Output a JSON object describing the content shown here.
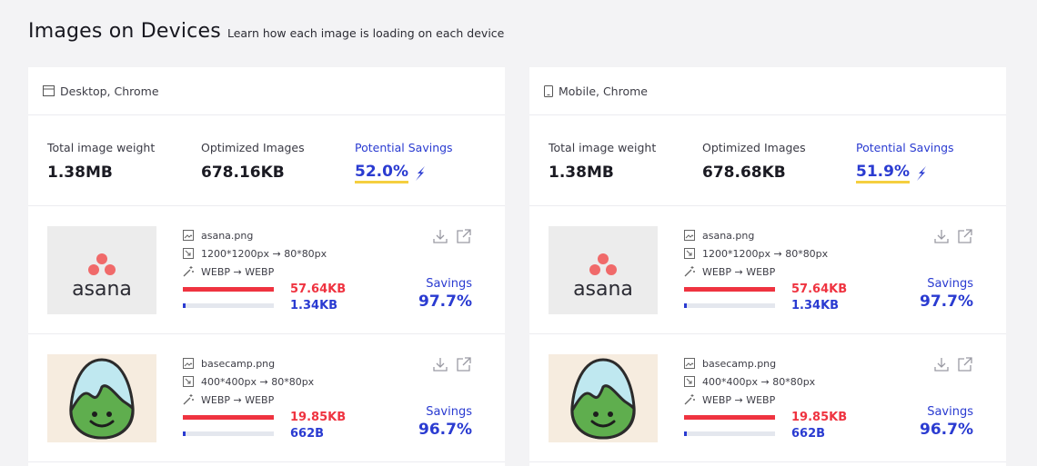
{
  "header": {
    "title": "Images on Devices",
    "subtitle": "Learn how each image is loading on each device"
  },
  "panels": [
    {
      "device": "Desktop, Chrome",
      "stats": {
        "total_label": "Total image weight",
        "total_value": "1.38MB",
        "optimized_label": "Optimized Images",
        "optimized_value": "678.16KB",
        "savings_label": "Potential Savings",
        "savings_value": "52.0%"
      },
      "items": [
        {
          "filename": "asana.png",
          "dimensions": "1200*1200px → 80*80px",
          "format": "WEBP → WEBP",
          "original_size": "57.64KB",
          "optimized_size": "1.34KB",
          "optimized_fraction": 0.023,
          "savings_label": "Savings",
          "savings_value": "97.7%",
          "logo_text": "asana"
        },
        {
          "filename": "basecamp.png",
          "dimensions": "400*400px → 80*80px",
          "format": "WEBP → WEBP",
          "original_size": "19.85KB",
          "optimized_size": "662B",
          "optimized_fraction": 0.033,
          "savings_label": "Savings",
          "savings_value": "96.7%"
        }
      ]
    },
    {
      "device": "Mobile, Chrome",
      "stats": {
        "total_label": "Total image weight",
        "total_value": "1.38MB",
        "optimized_label": "Optimized Images",
        "optimized_value": "678.68KB",
        "savings_label": "Potential Savings",
        "savings_value": "51.9%"
      },
      "items": [
        {
          "filename": "asana.png",
          "dimensions": "1200*1200px → 80*80px",
          "format": "WEBP → WEBP",
          "original_size": "57.64KB",
          "optimized_size": "1.34KB",
          "optimized_fraction": 0.023,
          "savings_label": "Savings",
          "savings_value": "97.7%",
          "logo_text": "asana"
        },
        {
          "filename": "basecamp.png",
          "dimensions": "400*400px → 80*80px",
          "format": "WEBP → WEBP",
          "original_size": "19.85KB",
          "optimized_size": "662B",
          "optimized_fraction": 0.033,
          "savings_label": "Savings",
          "savings_value": "96.7%"
        }
      ]
    }
  ],
  "colors": {
    "accent": "#2a3bd1",
    "danger": "#ef3340",
    "highlight": "#f5cf3f",
    "asana_dots": "#f06a6a",
    "basecamp_green": "#5fae4e",
    "basecamp_sky": "#bfe8f0"
  },
  "icons": {
    "desktop": "desktop-icon",
    "mobile": "mobile-icon",
    "bolt": "lightning-bolt-icon",
    "image": "image-icon",
    "resize": "resize-icon",
    "convert": "magic-wand-icon",
    "download": "download-icon",
    "external": "external-link-icon"
  }
}
